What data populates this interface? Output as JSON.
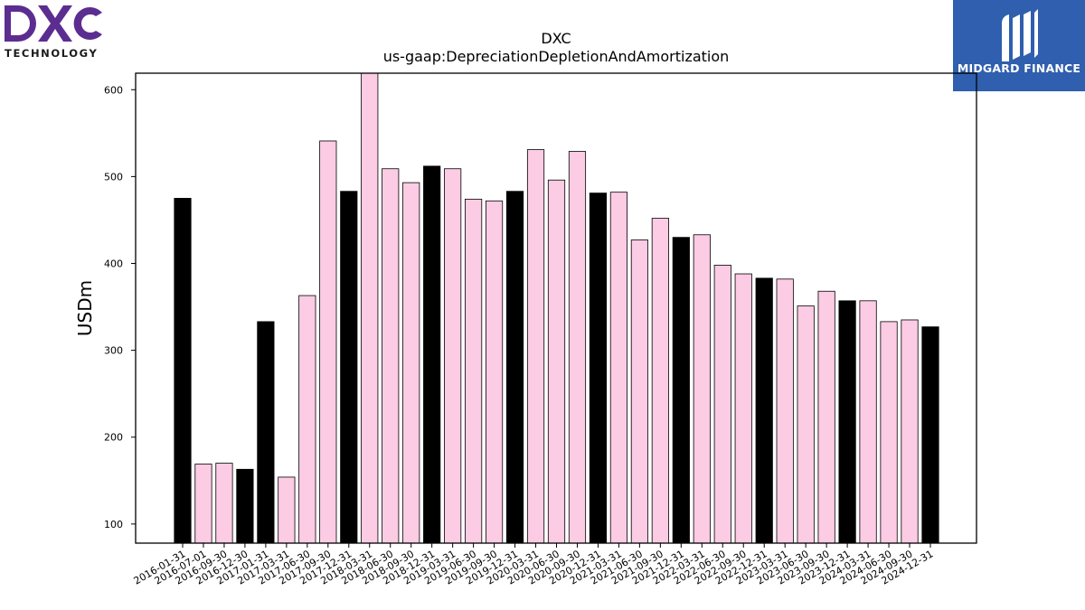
{
  "logos": {
    "left_brand": "DXC",
    "left_sub": "TECHNOLOGY",
    "right_brand": "MIDGARD FINANCE"
  },
  "colors": {
    "highlight": "#000000",
    "normal": "#fccbe4",
    "dxc_purple": "#5c2d91",
    "midgard_blue": "#2f5fae"
  },
  "chart_data": {
    "type": "bar",
    "title": "DXC",
    "subtitle": "us-gaap:DepreciationDepletionAndAmortization",
    "xlabel": "",
    "ylabel": "USDm",
    "ylim": [
      78,
      619
    ],
    "yticks": [
      100,
      200,
      300,
      400,
      500,
      600
    ],
    "grid": false,
    "categories": [
      "2016-01-31",
      "2016-07-01",
      "2016-09-30",
      "2016-12-30",
      "2017-01-31",
      "2017-03-31",
      "2017-06-30",
      "2017-09-30",
      "2017-12-31",
      "2018-03-31",
      "2018-06-30",
      "2018-09-30",
      "2018-12-31",
      "2019-03-31",
      "2019-06-30",
      "2019-09-30",
      "2019-12-31",
      "2020-03-31",
      "2020-06-30",
      "2020-09-30",
      "2020-12-31",
      "2021-03-31",
      "2021-06-30",
      "2021-09-30",
      "2021-12-31",
      "2022-03-31",
      "2022-06-30",
      "2022-09-30",
      "2022-12-31",
      "2023-03-31",
      "2023-06-30",
      "2023-09-30",
      "2023-12-31",
      "2024-03-31",
      "2024-06-30",
      "2024-09-30",
      "2024-12-31"
    ],
    "values": [
      475,
      169,
      170,
      163,
      333,
      154,
      363,
      541,
      483,
      620,
      509,
      493,
      512,
      509,
      474,
      472,
      483,
      531,
      496,
      529,
      481,
      482,
      427,
      452,
      430,
      433,
      398,
      388,
      383,
      382,
      351,
      368,
      357,
      357,
      333,
      335,
      327
    ],
    "highlighted": [
      true,
      false,
      false,
      true,
      true,
      false,
      false,
      false,
      true,
      false,
      false,
      false,
      true,
      false,
      false,
      false,
      true,
      false,
      false,
      false,
      true,
      false,
      false,
      false,
      true,
      false,
      false,
      false,
      true,
      false,
      false,
      false,
      true,
      false,
      false,
      false,
      true
    ]
  }
}
